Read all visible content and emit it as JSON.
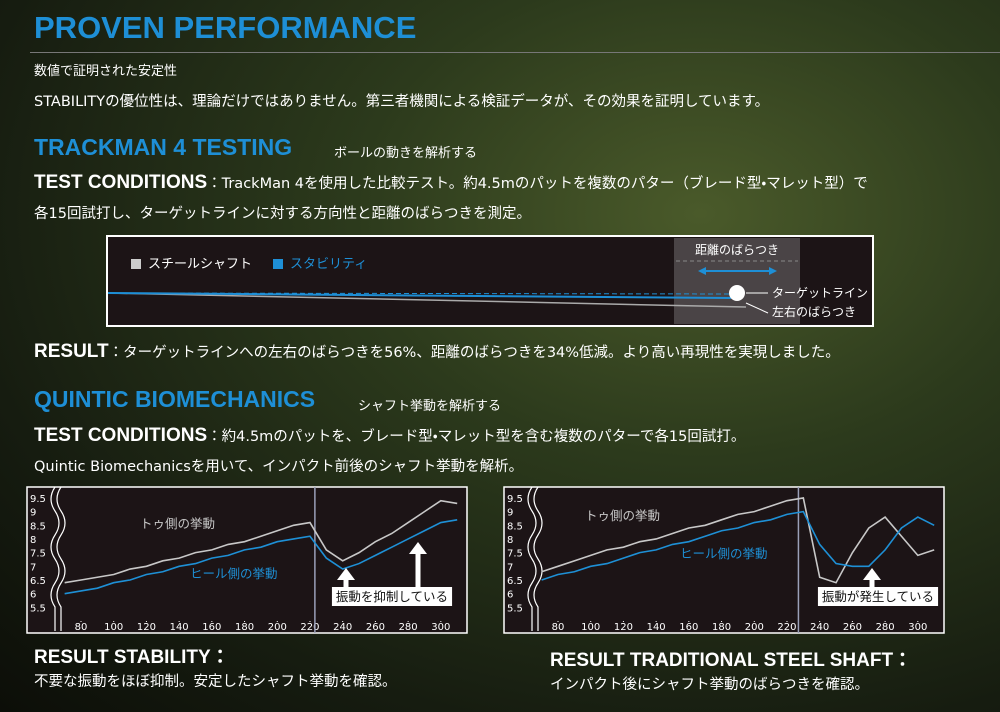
{
  "header": {
    "title": "PROVEN PERFORMANCE",
    "subtitle": "数値で証明された安定性",
    "intro": "STABILITYの優位性は、理論だけではありません。第三者機関による検証データが、その効果を証明しています。"
  },
  "trackman": {
    "heading": "TRACKMAN 4 TESTING",
    "subheading": "ボールの動きを解析する",
    "conditions_label": "TEST CONDITIONS",
    "conditions_line1": "：TrackMan 4を使用した比較テスト。約4.5mのパットを複数のパター（ブレード型・マレット型）で",
    "conditions_line2": "各15回試打し、ターゲットラインに対する方向性と距離のばらつきを測定。",
    "diagram": {
      "legend_steel": "スチールシャフト",
      "legend_stability": "スタビリティ",
      "distance": "距離のばらつき",
      "target": "ターゲットライン",
      "lateral": "左右のばらつき"
    },
    "result_label": "RESULT",
    "result_text": "：ターゲットラインへの左右のばらつきを56%、距離のばらつきを34%低減。より高い再現性を実現しました。"
  },
  "quintic": {
    "heading": "QUINTIC BIOMECHANICS",
    "subheading": "シャフト挙動を解析する",
    "conditions_label": "TEST CONDITIONS",
    "conditions_line1": "：約4.5mのパットを、ブレード型・マレット型を含む複数のパターで各15回試打。",
    "conditions_line2": "Quintic Biomechanicsを用いて、インパクト前後のシャフト挙動を解析。",
    "result_left_title": "RESULT STABILITY：",
    "result_left_text": "不要な振動をほぼ抑制。安定したシャフト挙動を確認。",
    "result_right_title": "RESULT TRADITIONAL STEEL SHAFT：",
    "result_right_text": "インパクト後にシャフト挙動のばらつきを確認。"
  },
  "chart_data": [
    {
      "type": "line",
      "annotation": "振動を抑制している",
      "x": [
        70,
        80,
        90,
        100,
        110,
        120,
        130,
        140,
        150,
        160,
        170,
        180,
        190,
        200,
        210,
        220,
        230,
        240,
        250,
        260,
        270,
        280,
        290,
        300,
        310
      ],
      "series": [
        {
          "name": "トゥ側の挙動",
          "color": "#c8c8c8",
          "values": [
            6.4,
            6.5,
            6.6,
            6.7,
            6.9,
            7.0,
            7.2,
            7.3,
            7.5,
            7.6,
            7.8,
            7.9,
            8.1,
            8.3,
            8.5,
            8.6,
            7.6,
            7.2,
            7.5,
            7.9,
            8.2,
            8.6,
            9.0,
            9.4,
            9.3
          ]
        },
        {
          "name": "ヒール側の挙動",
          "color": "#1e90d6",
          "values": [
            6.0,
            6.1,
            6.2,
            6.4,
            6.5,
            6.7,
            6.8,
            7.0,
            7.1,
            7.3,
            7.4,
            7.6,
            7.7,
            7.9,
            8.0,
            8.1,
            7.3,
            6.9,
            7.1,
            7.4,
            7.7,
            8.0,
            8.3,
            8.6,
            8.7
          ]
        }
      ],
      "xlim": [
        69,
        316
      ],
      "ylim": [
        5,
        9.9
      ],
      "xticks": [
        80,
        100,
        120,
        140,
        160,
        180,
        200,
        220,
        240,
        260,
        280,
        300
      ],
      "yticks": [
        9.5,
        9,
        8.5,
        8,
        7.5,
        7,
        6.5,
        6,
        5.5
      ],
      "vline": 223
    },
    {
      "type": "line",
      "annotation": "振動が発生している",
      "x": [
        70,
        80,
        90,
        100,
        110,
        120,
        130,
        140,
        150,
        160,
        170,
        180,
        190,
        200,
        210,
        220,
        230,
        240,
        250,
        260,
        270,
        280,
        290,
        300,
        310
      ],
      "series": [
        {
          "name": "トゥ側の挙動",
          "color": "#c8c8c8",
          "values": [
            6.8,
            7.0,
            7.2,
            7.4,
            7.6,
            7.7,
            7.9,
            8.0,
            8.2,
            8.4,
            8.5,
            8.7,
            8.9,
            9.0,
            9.2,
            9.4,
            9.5,
            6.6,
            6.4,
            7.5,
            8.4,
            8.8,
            8.1,
            7.4,
            7.6
          ]
        },
        {
          "name": "ヒール側の挙動",
          "color": "#1e90d6",
          "values": [
            6.5,
            6.7,
            6.8,
            7.0,
            7.1,
            7.3,
            7.5,
            7.6,
            7.8,
            7.9,
            8.1,
            8.3,
            8.4,
            8.6,
            8.7,
            8.9,
            9.0,
            7.8,
            7.1,
            7.0,
            7.0,
            7.6,
            8.4,
            8.8,
            8.5
          ]
        }
      ],
      "xlim": [
        69,
        316
      ],
      "ylim": [
        5,
        9.9
      ],
      "xticks": [
        80,
        100,
        120,
        140,
        160,
        180,
        200,
        220,
        240,
        260,
        280,
        300
      ],
      "yticks": [
        9.5,
        9,
        8.5,
        8,
        7.5,
        7,
        6.5,
        6,
        5.5
      ],
      "vline": 227
    }
  ]
}
